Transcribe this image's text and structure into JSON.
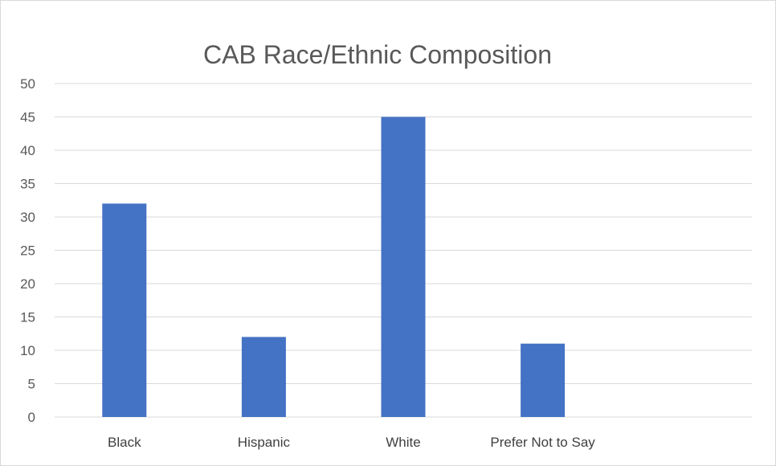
{
  "chart_data": {
    "type": "bar",
    "title": "CAB Race/Ethnic Composition",
    "categories": [
      "Black",
      "Hispanic",
      "White",
      "Prefer Not to Say"
    ],
    "values": [
      32,
      12,
      45,
      11
    ],
    "ylim": [
      0,
      50
    ],
    "yticks": [
      0,
      5,
      10,
      15,
      20,
      25,
      30,
      35,
      40,
      45,
      50
    ],
    "grid": true,
    "legend": "none",
    "bar_color": "#4472C4"
  }
}
